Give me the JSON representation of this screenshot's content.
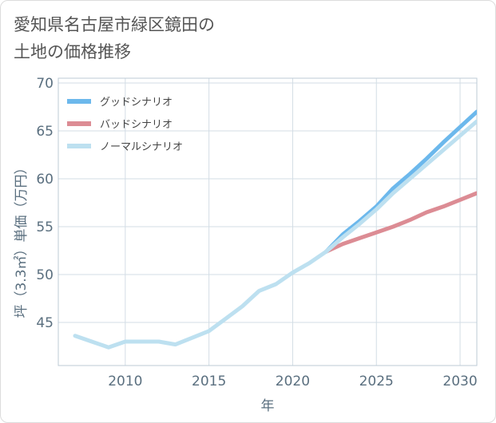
{
  "title_lines": [
    "愛知県名古屋市緑区鏡田の",
    "土地の価格推移"
  ],
  "chart_data": {
    "type": "line",
    "xlabel": "年",
    "ylabel": "坪（3.3㎡）単価（万円）",
    "xlim": [
      2006,
      2031
    ],
    "ylim": [
      40.5,
      70.5
    ],
    "xticks": [
      2010,
      2015,
      2020,
      2025,
      2030
    ],
    "yticks": [
      45,
      50,
      55,
      60,
      65,
      70
    ],
    "grid": true,
    "legend_position": "top-left",
    "series": [
      {
        "name": "グッドシナリオ",
        "color": "#6cb8ec",
        "x": [
          2022,
          2023,
          2024,
          2025,
          2026,
          2027,
          2028,
          2029,
          2030,
          2031
        ],
        "y": [
          52.4,
          54.2,
          55.6,
          57.1,
          59.0,
          60.5,
          62.1,
          63.8,
          65.4,
          67.0
        ]
      },
      {
        "name": "バッドシナリオ",
        "color": "#dc8c94",
        "x": [
          2022,
          2023,
          2024,
          2025,
          2026,
          2027,
          2028,
          2029,
          2030,
          2031
        ],
        "y": [
          52.4,
          53.2,
          53.8,
          54.4,
          55.0,
          55.7,
          56.5,
          57.1,
          57.8,
          58.5
        ]
      },
      {
        "name": "ノーマルシナリオ",
        "color": "#bde0f0",
        "x": [
          2007,
          2008,
          2009,
          2010,
          2011,
          2012,
          2013,
          2014,
          2015,
          2016,
          2017,
          2018,
          2019,
          2020,
          2021,
          2022,
          2023,
          2024,
          2025,
          2026,
          2027,
          2028,
          2029,
          2030,
          2031
        ],
        "y": [
          43.6,
          43.0,
          42.4,
          43.0,
          43.0,
          43.0,
          42.7,
          43.4,
          44.1,
          45.4,
          46.7,
          48.3,
          49.0,
          50.2,
          51.2,
          52.4,
          53.9,
          55.3,
          56.8,
          58.5,
          60.0,
          61.5,
          63.0,
          64.5,
          66.0
        ]
      }
    ]
  }
}
